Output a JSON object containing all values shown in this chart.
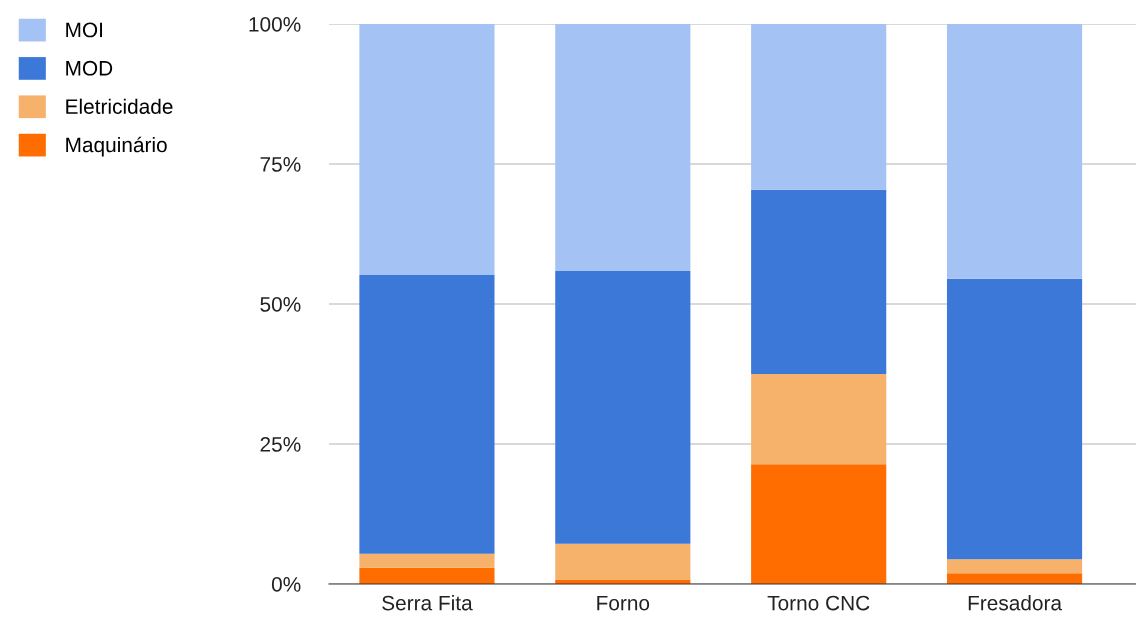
{
  "chart_data": {
    "type": "bar",
    "stacked": true,
    "categories": [
      "Serra Fita",
      "Forno",
      "Torno CNC",
      "Fresadora"
    ],
    "series": [
      {
        "name": "Maquinário",
        "color": "#ff6d01",
        "values": [
          2.9,
          0.8,
          21.4,
          1.9
        ]
      },
      {
        "name": "Eletricidade",
        "color": "#f6b26b",
        "values": [
          2.5,
          6.4,
          16.1,
          2.5
        ]
      },
      {
        "name": "MOD",
        "color": "#3c78d8",
        "values": [
          49.8,
          48.7,
          32.9,
          50.1
        ]
      },
      {
        "name": "MOI",
        "color": "#a4c2f4",
        "values": [
          44.8,
          44.1,
          29.6,
          45.5
        ]
      }
    ],
    "ylim": [
      0,
      100
    ],
    "yticks": [
      {
        "value": 0,
        "label": "0%"
      },
      {
        "value": 25,
        "label": "25%"
      },
      {
        "value": 50,
        "label": "50%"
      },
      {
        "value": 75,
        "label": "75%"
      },
      {
        "value": 100,
        "label": "100%"
      }
    ],
    "grid": "y",
    "legend": "top left"
  }
}
